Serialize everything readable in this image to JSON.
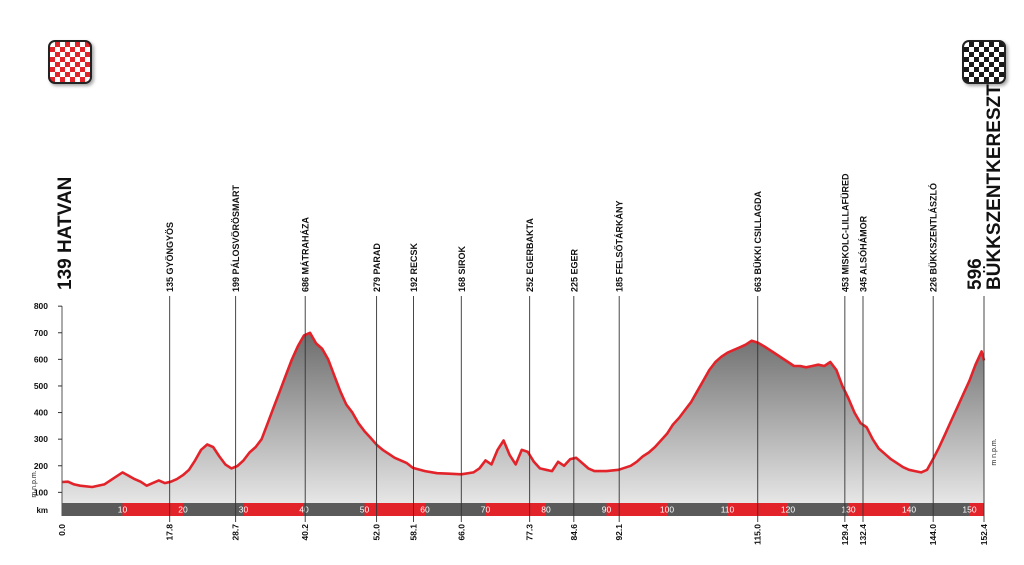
{
  "chart_data": {
    "type": "area",
    "title": "",
    "xlabel": "km",
    "ylabel": "m n.p.m.",
    "ylabel_right": "m n.p.m.",
    "xlim": [
      0,
      152.4
    ],
    "ylim": [
      60,
      800
    ],
    "y_ticks": [
      100,
      200,
      300,
      400,
      500,
      600,
      700,
      800
    ],
    "x_band_labels": [
      10,
      20,
      30,
      40,
      50,
      60,
      70,
      80,
      90,
      100,
      110,
      120,
      130,
      140,
      150
    ],
    "start": {
      "label": "139 HATVAN",
      "km": 0,
      "km_label": "0.0"
    },
    "finish": {
      "label": "596 BÜKKSZENTKERESZT",
      "label_line1": "596",
      "label_line2": "BÜKKSZENTKERESZT",
      "km": 152.4,
      "km_label": "152.4"
    },
    "waypoints": [
      {
        "label": "135 GYÖNGYÖS",
        "km": 17.8,
        "km_label": "17.8"
      },
      {
        "label": "199 PÁLOSVÖRÖSMART",
        "km": 28.7,
        "km_label": "28.7"
      },
      {
        "label": "686 MÁTRAHÁZA",
        "km": 40.2,
        "km_label": "40.2"
      },
      {
        "label": "279 PARAD",
        "km": 52.0,
        "km_label": "52.0"
      },
      {
        "label": "192 RECSK",
        "km": 58.1,
        "km_label": "58.1"
      },
      {
        "label": "168 SIROK",
        "km": 66.0,
        "km_label": "66.0"
      },
      {
        "label": "252 EGERBAKTA",
        "km": 77.3,
        "km_label": "77.3"
      },
      {
        "label": "225 EGER",
        "km": 84.6,
        "km_label": "84.6"
      },
      {
        "label": "185 FELSŐTÁRKÁNY",
        "km": 92.1,
        "km_label": "92.1"
      },
      {
        "label": "663 BÜKKI CSILLAGDA",
        "km": 115.0,
        "km_label": "115.0"
      },
      {
        "label": "453 MISKOLC-LILLAFÜRED",
        "km": 129.4,
        "km_label": "129.4"
      },
      {
        "label": "345 ALSÓHÁMOR",
        "km": 132.4,
        "km_label": "132.4"
      },
      {
        "label": "226 BÜKKSZENTLÁSZLÓ",
        "km": 144.0,
        "km_label": "144.0"
      }
    ],
    "series": [
      {
        "values_km": [
          0,
          1,
          2,
          3,
          5,
          7,
          9,
          10,
          12,
          13,
          14,
          15,
          16,
          17,
          18,
          19,
          20,
          21,
          22,
          23,
          24,
          25,
          26,
          27,
          28,
          29,
          30,
          31,
          32,
          33,
          34,
          35,
          36,
          37,
          38,
          39,
          40,
          41,
          42,
          43,
          44,
          45,
          46,
          47,
          48,
          49,
          50,
          51,
          52,
          53,
          54,
          55,
          56,
          57,
          58,
          60,
          62,
          64,
          66,
          68,
          69,
          70,
          71,
          72,
          73,
          74,
          75,
          76,
          77,
          78,
          79,
          80,
          81,
          82,
          83,
          84,
          85,
          86,
          87,
          88,
          90,
          92,
          94,
          95,
          96,
          97,
          98,
          99,
          100,
          101,
          102,
          103,
          104,
          105,
          106,
          107,
          108,
          109,
          110,
          111,
          112,
          113,
          114,
          115,
          116,
          117,
          118,
          119,
          120,
          121,
          122,
          123,
          124,
          125,
          126,
          127,
          128,
          129,
          130,
          131,
          132,
          133,
          134,
          135,
          136,
          137,
          138,
          139,
          140,
          141,
          142,
          143,
          144,
          145,
          146,
          147,
          148,
          149,
          150,
          151,
          152,
          152.4
        ],
        "values": [
          139,
          140,
          130,
          125,
          120,
          130,
          160,
          175,
          150,
          140,
          125,
          135,
          145,
          135,
          140,
          150,
          165,
          185,
          220,
          260,
          280,
          270,
          235,
          205,
          190,
          199,
          220,
          250,
          270,
          300,
          360,
          420,
          480,
          540,
          600,
          650,
          690,
          700,
          660,
          640,
          600,
          540,
          480,
          430,
          400,
          360,
          330,
          305,
          279,
          260,
          245,
          230,
          220,
          210,
          192,
          180,
          172,
          170,
          168,
          175,
          190,
          220,
          205,
          260,
          295,
          240,
          205,
          260,
          252,
          215,
          190,
          185,
          180,
          215,
          200,
          225,
          230,
          210,
          190,
          180,
          180,
          185,
          200,
          215,
          235,
          250,
          270,
          295,
          320,
          355,
          380,
          410,
          440,
          480,
          520,
          560,
          590,
          610,
          625,
          635,
          645,
          655,
          670,
          663,
          650,
          635,
          620,
          605,
          590,
          575,
          575,
          570,
          575,
          580,
          575,
          590,
          560,
          500,
          453,
          400,
          360,
          345,
          300,
          265,
          245,
          225,
          210,
          195,
          185,
          180,
          175,
          185,
          226,
          270,
          320,
          370,
          420,
          470,
          520,
          580,
          630,
          596
        ]
      }
    ]
  }
}
